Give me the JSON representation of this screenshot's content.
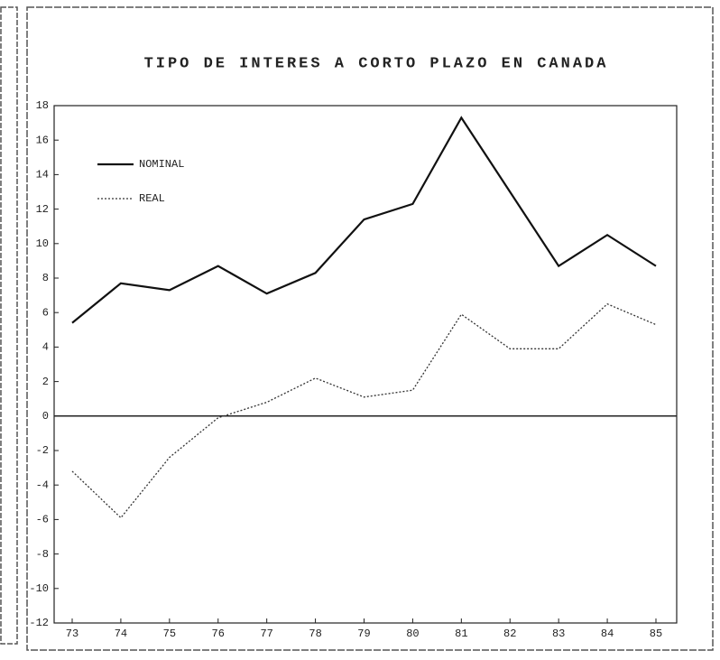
{
  "chart_data": {
    "type": "line",
    "title": "TIPO DE INTERES A CORTO PLAZO EN CANADA",
    "categories": [
      "73",
      "74",
      "75",
      "76",
      "77",
      "78",
      "79",
      "80",
      "81",
      "82",
      "83",
      "84",
      "85"
    ],
    "series": [
      {
        "name": "NOMINAL",
        "color": "#111111",
        "style": "solid",
        "values": [
          5.4,
          7.7,
          7.3,
          8.7,
          7.1,
          8.3,
          11.4,
          12.3,
          17.3,
          13.0,
          8.7,
          10.5,
          8.7
        ]
      },
      {
        "name": "REAL",
        "color": "#333333",
        "style": "dotted",
        "values": [
          -3.2,
          -5.9,
          -2.4,
          -0.1,
          0.8,
          2.2,
          1.1,
          1.5,
          5.9,
          3.9,
          3.9,
          6.5,
          5.3
        ]
      }
    ],
    "ylim": [
      -12,
      18
    ],
    "yticks": [
      -12,
      -10,
      -8,
      -6,
      -4,
      -2,
      0,
      2,
      4,
      6,
      8,
      10,
      12,
      14,
      16,
      18
    ],
    "legend": "upper left",
    "grid": false
  }
}
